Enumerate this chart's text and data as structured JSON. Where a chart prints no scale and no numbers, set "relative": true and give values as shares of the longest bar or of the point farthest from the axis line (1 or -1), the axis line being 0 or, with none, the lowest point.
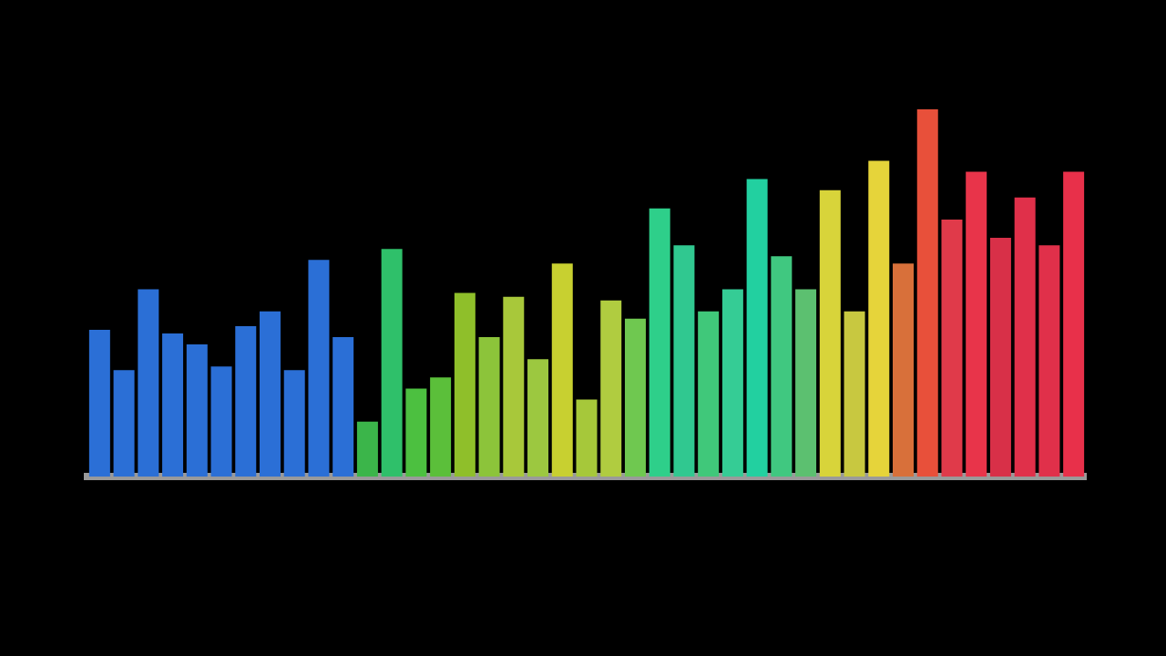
{
  "chart_data": {
    "type": "bar",
    "relative": true,
    "categories": [
      null,
      null,
      null,
      null,
      null,
      null,
      null,
      null,
      null,
      null,
      null,
      null,
      null,
      null,
      null,
      null,
      null,
      null,
      null,
      null,
      null,
      null,
      null,
      null,
      null,
      null,
      null,
      null,
      null,
      null,
      null,
      null,
      null,
      null,
      null,
      null,
      null,
      null,
      null,
      null,
      null
    ],
    "values": [
      0.4,
      0.29,
      0.51,
      0.39,
      0.36,
      0.3,
      0.41,
      0.45,
      0.29,
      0.59,
      0.38,
      0.15,
      0.62,
      0.24,
      0.27,
      0.5,
      0.38,
      0.49,
      0.32,
      0.58,
      0.21,
      0.48,
      0.43,
      0.73,
      0.63,
      0.45,
      0.51,
      0.81,
      0.6,
      0.51,
      0.78,
      0.45,
      0.86,
      0.58,
      1,
      0.7,
      0.83,
      0.65,
      0.76,
      0.63,
      0.83
    ],
    "colors": [
      "#2b6fd6",
      "#2b6fd6",
      "#2b6fd6",
      "#2b6fd6",
      "#2b6fd6",
      "#2b6fd6",
      "#2b6fd6",
      "#2b6fd6",
      "#2b6fd6",
      "#2b6fd6",
      "#2b6fd6",
      "#3bb54a",
      "#2fc06a",
      "#4cc040",
      "#5bbf3a",
      "#8fbf2a",
      "#8cc43a",
      "#a8c83a",
      "#9cc840",
      "#c8d030",
      "#a6c83a",
      "#b0cc40",
      "#6fc850",
      "#2ecf8a",
      "#30c890",
      "#40c87a",
      "#35cc95",
      "#22d0a0",
      "#40c880",
      "#5cc070",
      "#d8d43a",
      "#c8c840",
      "#e6d43a",
      "#d8703a",
      "#e8503a",
      "#e03a4a",
      "#e8344a",
      "#d83048",
      "#e0304a",
      "#e0304a",
      "#e8304a"
    ],
    "legend": false
  }
}
